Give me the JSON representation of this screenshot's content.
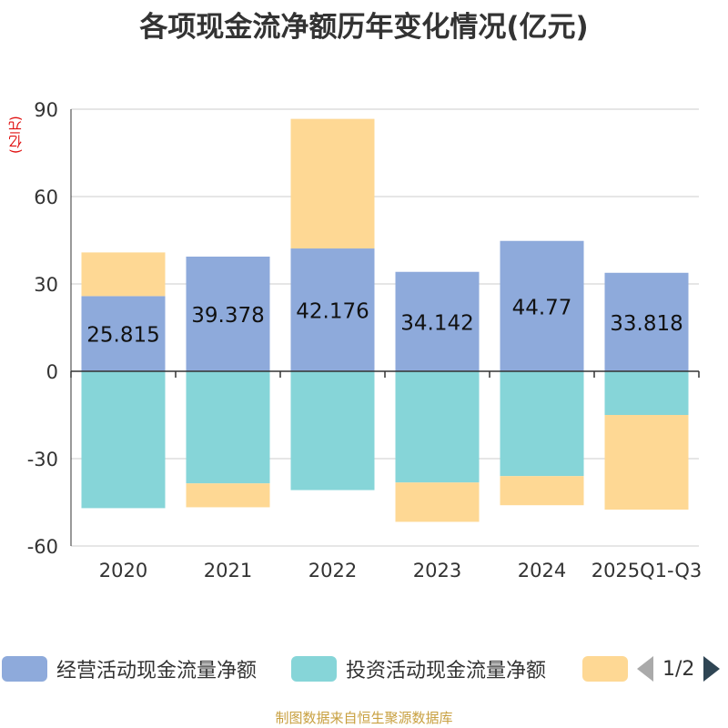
{
  "chart_data": {
    "type": "bar",
    "stacked": true,
    "title": "各项现金流净额历年变化情况(亿元)",
    "ylabel": "(亿元)",
    "ylim": [
      -60,
      90
    ],
    "yticks": [
      90,
      60,
      30,
      0,
      -30,
      -60
    ],
    "categories": [
      "2020",
      "2021",
      "2022",
      "2023",
      "2024",
      "2025Q1-Q3"
    ],
    "series": [
      {
        "name": "经营活动现金流量净额",
        "color": "#8eaadb",
        "values": [
          25.815,
          39.378,
          42.176,
          34.142,
          44.77,
          33.818
        ]
      },
      {
        "name": "投资活动现金流量净额",
        "color": "#86d5d8",
        "values": [
          -47,
          -38.5,
          -40.8,
          -38.2,
          -36,
          -15
        ]
      },
      {
        "name": "",
        "color": "#fed894",
        "values": [
          15,
          -8.2,
          44.5,
          -13.5,
          -10,
          -32.5
        ]
      }
    ],
    "data_labels": [
      "25.815",
      "39.378",
      "42.176",
      "34.142",
      "44.77",
      "33.818"
    ]
  },
  "legend": {
    "items": [
      {
        "label": "经营活动现金流量净额",
        "color": "#8eaadb"
      },
      {
        "label": "投资活动现金流量净额",
        "color": "#86d5d8"
      },
      {
        "label": "",
        "color": "#fed894"
      }
    ],
    "page": "1/2"
  },
  "source": "制图数据来自恒生聚源数据库"
}
